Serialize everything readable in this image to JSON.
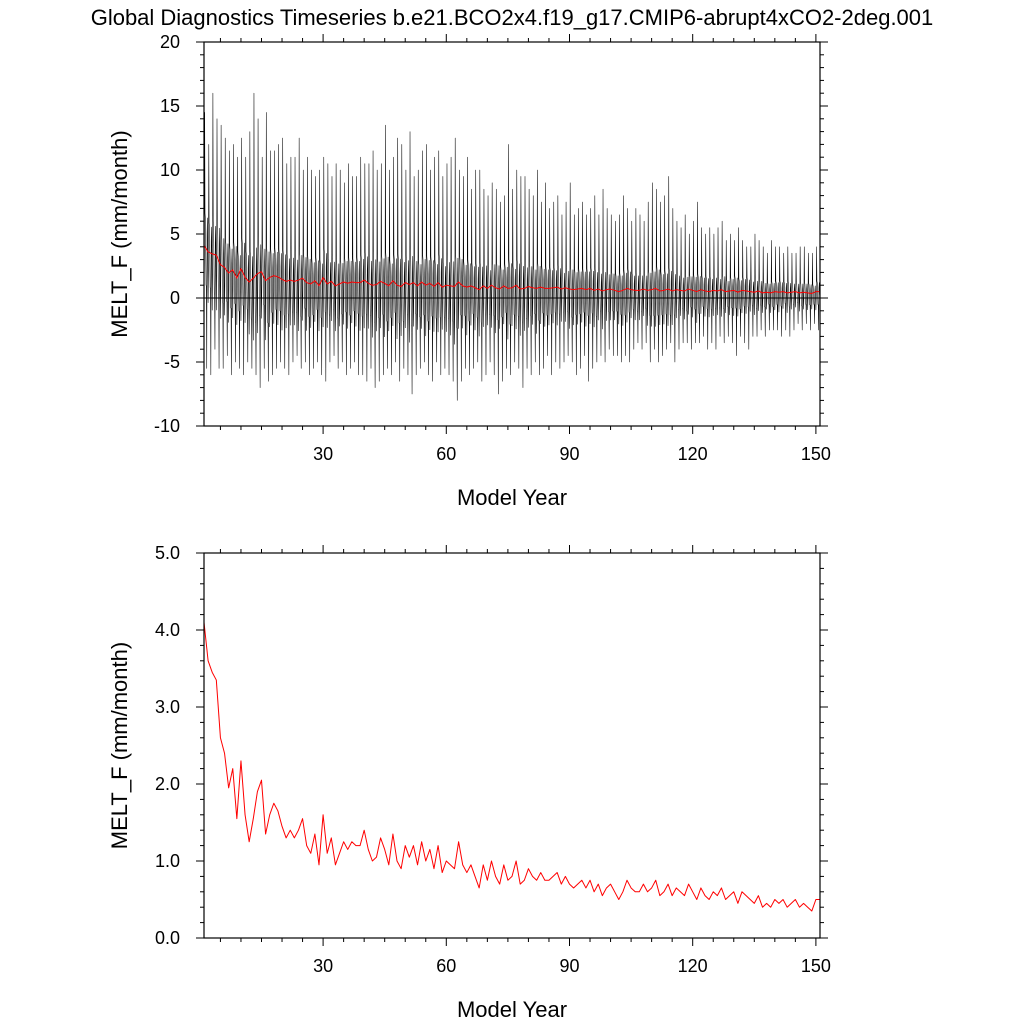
{
  "figure": {
    "title": "Global Diagnostics Timeseries b.e21.BCO2x4.f19_g17.CMIP6-abrupt4xCO2-2deg.001"
  },
  "colors": {
    "monthly_series": "#000000",
    "annual_series": "#ff0000",
    "zero_line": "#000000"
  },
  "chart_data": [
    {
      "type": "line",
      "panel": "monthly",
      "xlabel": "Model Year",
      "ylabel": "MELT_F (mm/month)",
      "xlim": [
        1,
        151
      ],
      "ylim": [
        -10,
        20
      ],
      "x_ticks": [
        30,
        60,
        90,
        120,
        150
      ],
      "y_ticks": [
        -10,
        -5,
        0,
        5,
        10,
        15,
        20
      ],
      "y_tick_labels": [
        "-10",
        "-5",
        "0",
        "5",
        "10",
        "15",
        "20"
      ],
      "zero_line": true,
      "grid": false,
      "series": [
        {
          "role": "monthly",
          "color": "#000000",
          "x_start": 1,
          "x_step": 0.0833333,
          "monthly_peak_by_year": [
            14.5,
            12.0,
            16.0,
            14.0,
            13.5,
            12.5,
            11.5,
            12.0,
            11.0,
            12.5,
            11.0,
            13.0,
            16.0,
            14.0,
            11.0,
            14.5,
            11.5,
            11.5,
            12.0,
            12.5,
            10.5,
            11.0,
            11.0,
            12.5,
            10.0,
            11.0,
            10.0,
            9.5,
            10.0,
            11.0,
            10.5,
            9.5,
            10.5,
            10.0,
            9.0,
            10.5,
            9.5,
            9.5,
            11.0,
            10.5,
            10.5,
            11.5,
            10.0,
            10.5,
            13.5,
            10.0,
            11.0,
            12.5,
            12.0,
            10.0,
            13.0,
            9.5,
            10.0,
            11.5,
            12.0,
            10.0,
            11.0,
            11.5,
            9.5,
            10.5,
            11.0,
            12.5,
            10.0,
            9.5,
            11.0,
            8.5,
            10.0,
            10.0,
            8.5,
            8.0,
            9.0,
            8.5,
            7.5,
            8.0,
            12.0,
            8.5,
            10.0,
            9.5,
            9.5,
            8.5,
            8.0,
            10.0,
            7.5,
            9.0,
            7.0,
            7.5,
            8.0,
            6.5,
            7.5,
            9.0,
            6.5,
            7.0,
            7.5,
            6.5,
            7.0,
            8.0,
            6.5,
            8.5,
            7.0,
            6.5,
            6.0,
            6.5,
            8.0,
            7.0,
            6.0,
            7.0,
            6.5,
            6.0,
            7.5,
            9.0,
            8.5,
            7.5,
            8.0,
            9.5,
            7.0,
            6.0,
            5.5,
            6.5,
            5.0,
            6.0,
            7.5,
            5.5,
            5.0,
            5.5,
            5.0,
            5.5,
            6.0,
            4.5,
            5.0,
            4.5,
            5.5,
            4.5,
            4.0,
            4.0,
            5.0,
            4.5,
            4.0,
            3.5,
            4.5,
            4.0,
            4.0,
            3.5,
            4.0,
            3.5,
            3.5,
            4.0,
            4.0,
            3.5,
            3.5,
            4.0
          ],
          "monthly_trough_by_year": [
            -5.5,
            -6.0,
            -4.0,
            -5.5,
            -5.5,
            -4.5,
            -6.0,
            -5.0,
            -5.5,
            -6.0,
            -5.0,
            -5.5,
            -6.0,
            -7.0,
            -5.5,
            -6.5,
            -6.0,
            -5.5,
            -5.0,
            -5.5,
            -6.0,
            -5.0,
            -4.5,
            -5.5,
            -5.0,
            -6.0,
            -5.5,
            -5.0,
            -6.0,
            -6.5,
            -5.0,
            -4.5,
            -5.5,
            -5.0,
            -6.0,
            -5.5,
            -5.0,
            -6.0,
            -6.0,
            -6.5,
            -5.5,
            -7.0,
            -6.5,
            -6.0,
            -5.5,
            -6.0,
            -5.0,
            -6.5,
            -5.5,
            -6.0,
            -7.5,
            -6.0,
            -5.5,
            -5.0,
            -6.0,
            -6.5,
            -5.0,
            -6.0,
            -5.5,
            -6.0,
            -6.5,
            -8.0,
            -6.5,
            -5.5,
            -6.0,
            -5.5,
            -5.0,
            -6.5,
            -6.0,
            -5.0,
            -6.0,
            -7.5,
            -6.5,
            -5.5,
            -6.0,
            -5.0,
            -5.5,
            -7.0,
            -5.5,
            -6.0,
            -5.0,
            -6.0,
            -5.5,
            -4.5,
            -6.0,
            -5.0,
            -5.5,
            -5.0,
            -4.5,
            -5.0,
            -6.0,
            -5.5,
            -4.5,
            -6.5,
            -5.5,
            -5.0,
            -4.5,
            -5.0,
            -4.0,
            -4.5,
            -4.5,
            -5.0,
            -4.5,
            -5.0,
            -4.0,
            -3.5,
            -4.0,
            -3.5,
            -5.0,
            -4.0,
            -5.0,
            -4.5,
            -4.0,
            -3.5,
            -5.0,
            -4.0,
            -3.5,
            -3.5,
            -4.0,
            -3.5,
            -3.5,
            -3.0,
            -4.0,
            -3.5,
            -4.0,
            -3.0,
            -3.5,
            -3.0,
            -3.5,
            -4.5,
            -3.0,
            -3.5,
            -4.0,
            -3.0,
            -3.0,
            -2.5,
            -3.0,
            -2.5,
            -2.5,
            -2.5,
            -3.0,
            -2.5,
            -3.0,
            -2.5,
            -2.0,
            -2.5,
            -2.0,
            -2.5,
            -2.0,
            -2.5
          ]
        },
        {
          "role": "annual-mean",
          "color": "#ff0000",
          "x": [
            1,
            2,
            3,
            4,
            5,
            6,
            7,
            8,
            9,
            10,
            11,
            12,
            13,
            14,
            15,
            16,
            17,
            18,
            19,
            20,
            21,
            22,
            23,
            24,
            25,
            26,
            27,
            28,
            29,
            30,
            31,
            32,
            33,
            34,
            35,
            36,
            37,
            38,
            39,
            40,
            41,
            42,
            43,
            44,
            45,
            46,
            47,
            48,
            49,
            50,
            51,
            52,
            53,
            54,
            55,
            56,
            57,
            58,
            59,
            60,
            61,
            62,
            63,
            64,
            65,
            66,
            67,
            68,
            69,
            70,
            71,
            72,
            73,
            74,
            75,
            76,
            77,
            78,
            79,
            80,
            81,
            82,
            83,
            84,
            85,
            86,
            87,
            88,
            89,
            90,
            91,
            92,
            93,
            94,
            95,
            96,
            97,
            98,
            99,
            100,
            101,
            102,
            103,
            104,
            105,
            106,
            107,
            108,
            109,
            110,
            111,
            112,
            113,
            114,
            115,
            116,
            117,
            118,
            119,
            120,
            121,
            122,
            123,
            124,
            125,
            126,
            127,
            128,
            129,
            130,
            131,
            132,
            133,
            134,
            135,
            136,
            137,
            138,
            139,
            140,
            141,
            142,
            143,
            144,
            145,
            146,
            147,
            148,
            149,
            150,
            151
          ],
          "y": [
            4.1,
            3.6,
            3.45,
            3.35,
            2.6,
            2.4,
            1.95,
            2.2,
            1.55,
            2.3,
            1.6,
            1.25,
            1.55,
            1.9,
            2.05,
            1.35,
            1.6,
            1.75,
            1.65,
            1.45,
            1.3,
            1.4,
            1.3,
            1.4,
            1.55,
            1.2,
            1.1,
            1.35,
            0.95,
            1.6,
            1.1,
            1.3,
            0.95,
            1.1,
            1.25,
            1.15,
            1.25,
            1.2,
            1.2,
            1.4,
            1.15,
            1.0,
            1.05,
            1.3,
            1.15,
            0.95,
            1.35,
            1.0,
            0.9,
            1.2,
            1.05,
            1.2,
            0.95,
            1.25,
            1.0,
            1.15,
            0.9,
            1.2,
            0.85,
            1.0,
            0.95,
            0.9,
            1.25,
            0.95,
            0.85,
            0.95,
            0.8,
            0.65,
            0.95,
            0.75,
            1.0,
            0.8,
            0.7,
            0.95,
            0.75,
            0.8,
            1.0,
            0.7,
            0.75,
            0.9,
            0.8,
            0.75,
            0.85,
            0.75,
            0.75,
            0.8,
            0.85,
            0.7,
            0.8,
            0.7,
            0.65,
            0.7,
            0.75,
            0.65,
            0.75,
            0.6,
            0.7,
            0.55,
            0.65,
            0.7,
            0.6,
            0.5,
            0.6,
            0.75,
            0.65,
            0.6,
            0.6,
            0.7,
            0.6,
            0.65,
            0.75,
            0.55,
            0.6,
            0.7,
            0.55,
            0.65,
            0.6,
            0.55,
            0.7,
            0.6,
            0.5,
            0.65,
            0.55,
            0.5,
            0.6,
            0.55,
            0.65,
            0.5,
            0.55,
            0.6,
            0.45,
            0.6,
            0.55,
            0.5,
            0.45,
            0.55,
            0.4,
            0.45,
            0.4,
            0.5,
            0.45,
            0.5,
            0.4,
            0.45,
            0.5,
            0.4,
            0.45,
            0.4,
            0.35,
            0.5,
            0.5
          ]
        }
      ]
    },
    {
      "type": "line",
      "panel": "annual",
      "xlabel": "Model Year",
      "ylabel": "MELT_F (mm/month)",
      "xlim": [
        1,
        151
      ],
      "ylim": [
        0,
        5
      ],
      "x_ticks": [
        30,
        60,
        90,
        120,
        150
      ],
      "y_ticks": [
        0,
        1,
        2,
        3,
        4,
        5
      ],
      "y_tick_labels": [
        "0.0",
        "1.0",
        "2.0",
        "3.0",
        "4.0",
        "5.0"
      ],
      "zero_line": false,
      "grid": false,
      "series": [
        {
          "role": "annual-mean",
          "color": "#ff0000",
          "x": [
            1,
            2,
            3,
            4,
            5,
            6,
            7,
            8,
            9,
            10,
            11,
            12,
            13,
            14,
            15,
            16,
            17,
            18,
            19,
            20,
            21,
            22,
            23,
            24,
            25,
            26,
            27,
            28,
            29,
            30,
            31,
            32,
            33,
            34,
            35,
            36,
            37,
            38,
            39,
            40,
            41,
            42,
            43,
            44,
            45,
            46,
            47,
            48,
            49,
            50,
            51,
            52,
            53,
            54,
            55,
            56,
            57,
            58,
            59,
            60,
            61,
            62,
            63,
            64,
            65,
            66,
            67,
            68,
            69,
            70,
            71,
            72,
            73,
            74,
            75,
            76,
            77,
            78,
            79,
            80,
            81,
            82,
            83,
            84,
            85,
            86,
            87,
            88,
            89,
            90,
            91,
            92,
            93,
            94,
            95,
            96,
            97,
            98,
            99,
            100,
            101,
            102,
            103,
            104,
            105,
            106,
            107,
            108,
            109,
            110,
            111,
            112,
            113,
            114,
            115,
            116,
            117,
            118,
            119,
            120,
            121,
            122,
            123,
            124,
            125,
            126,
            127,
            128,
            129,
            130,
            131,
            132,
            133,
            134,
            135,
            136,
            137,
            138,
            139,
            140,
            141,
            142,
            143,
            144,
            145,
            146,
            147,
            148,
            149,
            150,
            151
          ],
          "y": [
            4.1,
            3.6,
            3.45,
            3.35,
            2.6,
            2.4,
            1.95,
            2.2,
            1.55,
            2.3,
            1.6,
            1.25,
            1.55,
            1.9,
            2.05,
            1.35,
            1.6,
            1.75,
            1.65,
            1.45,
            1.3,
            1.4,
            1.3,
            1.4,
            1.55,
            1.2,
            1.1,
            1.35,
            0.95,
            1.6,
            1.1,
            1.3,
            0.95,
            1.1,
            1.25,
            1.15,
            1.25,
            1.2,
            1.2,
            1.4,
            1.15,
            1.0,
            1.05,
            1.3,
            1.15,
            0.95,
            1.35,
            1.0,
            0.9,
            1.2,
            1.05,
            1.2,
            0.95,
            1.25,
            1.0,
            1.15,
            0.9,
            1.2,
            0.85,
            1.0,
            0.95,
            0.9,
            1.25,
            0.95,
            0.85,
            0.95,
            0.8,
            0.65,
            0.95,
            0.75,
            1.0,
            0.8,
            0.7,
            0.95,
            0.75,
            0.8,
            1.0,
            0.7,
            0.75,
            0.9,
            0.8,
            0.75,
            0.85,
            0.75,
            0.75,
            0.8,
            0.85,
            0.7,
            0.8,
            0.7,
            0.65,
            0.7,
            0.75,
            0.65,
            0.75,
            0.6,
            0.7,
            0.55,
            0.65,
            0.7,
            0.6,
            0.5,
            0.6,
            0.75,
            0.65,
            0.6,
            0.6,
            0.7,
            0.6,
            0.65,
            0.75,
            0.55,
            0.6,
            0.7,
            0.55,
            0.65,
            0.6,
            0.55,
            0.7,
            0.6,
            0.5,
            0.65,
            0.55,
            0.5,
            0.6,
            0.55,
            0.65,
            0.5,
            0.55,
            0.6,
            0.45,
            0.6,
            0.55,
            0.5,
            0.45,
            0.55,
            0.4,
            0.45,
            0.4,
            0.5,
            0.45,
            0.5,
            0.4,
            0.45,
            0.5,
            0.4,
            0.45,
            0.4,
            0.35,
            0.5,
            0.5
          ]
        }
      ]
    }
  ]
}
